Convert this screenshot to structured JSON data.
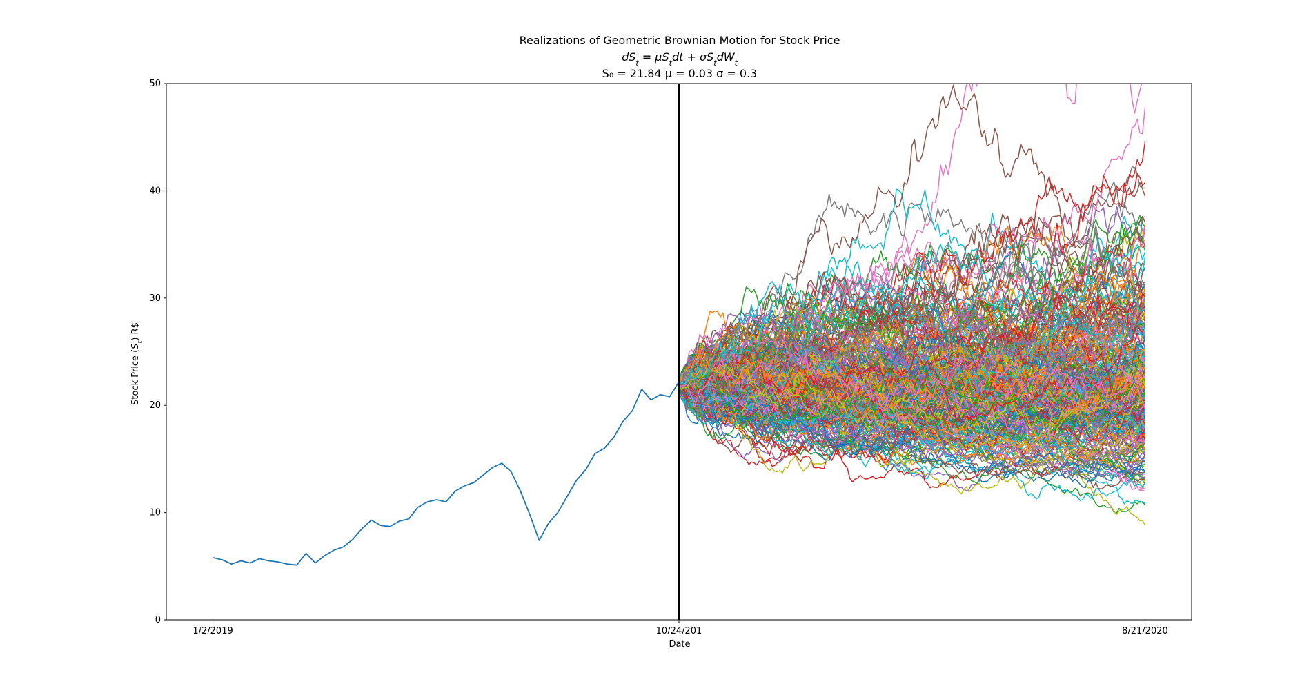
{
  "chart_data": {
    "type": "line",
    "title": "Realizations of Geometric Brownian Motion for Stock Price",
    "subtitle_equation": "dSt = μStdt + σStdWt",
    "subtitle_params": "S₀ = 21.84   μ = 0.03   σ = 0.3",
    "xlabel": "Date",
    "ylabel": "Stock Price (St) R$",
    "ylim": [
      0,
      50
    ],
    "yticks": [
      0,
      10,
      20,
      30,
      40,
      50
    ],
    "xticks": [
      {
        "t": 0,
        "label": "1/2/2019"
      },
      {
        "t": 1,
        "label": "10/24/201"
      },
      {
        "t": 2,
        "label": "8/21/2020"
      }
    ],
    "xlim": [
      -0.1,
      2.1
    ],
    "divider_t": 1,
    "grid": false,
    "historical": {
      "name": "historical",
      "color": "#1f77b4",
      "t": [
        0,
        0.02,
        0.04,
        0.06,
        0.08,
        0.1,
        0.12,
        0.14,
        0.16,
        0.18,
        0.2,
        0.22,
        0.24,
        0.26,
        0.28,
        0.3,
        0.32,
        0.34,
        0.36,
        0.38,
        0.4,
        0.42,
        0.44,
        0.46,
        0.48,
        0.5,
        0.52,
        0.54,
        0.56,
        0.58,
        0.6,
        0.62,
        0.64,
        0.66,
        0.68,
        0.7,
        0.72,
        0.74,
        0.76,
        0.78,
        0.8,
        0.82,
        0.84,
        0.86,
        0.88,
        0.9,
        0.92,
        0.94,
        0.96,
        0.98,
        1.0
      ],
      "values": [
        5.8,
        5.6,
        5.2,
        5.5,
        5.3,
        5.7,
        5.5,
        5.4,
        5.2,
        5.1,
        6.2,
        5.3,
        6.0,
        6.5,
        6.8,
        7.5,
        8.5,
        9.3,
        8.8,
        8.7,
        9.2,
        9.4,
        10.5,
        11.0,
        11.2,
        11.0,
        12.0,
        12.5,
        12.8,
        13.5,
        14.2,
        14.6,
        13.8,
        12.0,
        9.8,
        7.4,
        9.0,
        10.0,
        11.5,
        13.0,
        14.0,
        15.5,
        16.0,
        17.0,
        18.5,
        19.5,
        21.5,
        20.5,
        21.0,
        20.8,
        22.2
      ]
    },
    "simulation": {
      "n_paths": 300,
      "start_value": 21.84,
      "t_start": 1,
      "t_end": 2,
      "steps": 180,
      "mu": 0.03,
      "sigma": 0.3,
      "palette": [
        "#1f77b4",
        "#ff7f0e",
        "#2ca02c",
        "#d62728",
        "#9467bd",
        "#8c564b",
        "#e377c2",
        "#7f7f7f",
        "#bcbd22",
        "#17becf"
      ]
    }
  }
}
